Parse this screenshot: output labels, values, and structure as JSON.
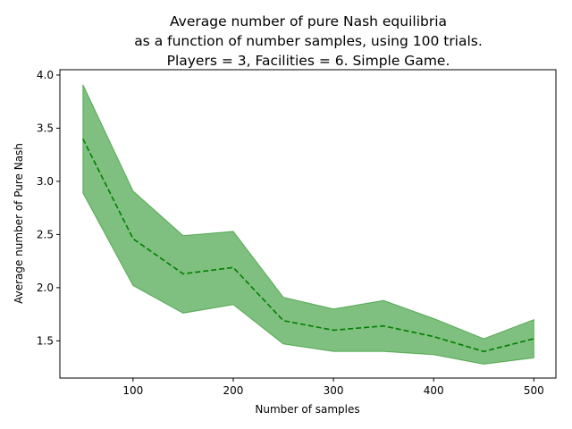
{
  "chart_data": {
    "type": "line",
    "title_lines": [
      "Average number of pure Nash equilibria",
      "as a function of number samples, using 100 trials.",
      "Players = 3, Facilities = 6. Simple Game."
    ],
    "xlabel": "Number of samples",
    "ylabel": "Average number of Pure Nash",
    "xlim": [
      27,
      522
    ],
    "ylim": [
      1.15,
      4.05
    ],
    "xticks": [
      100,
      200,
      300,
      400,
      500
    ],
    "xtick_labels": [
      "100",
      "200",
      "300",
      "400",
      "500"
    ],
    "yticks": [
      1.5,
      2.0,
      2.5,
      3.0,
      3.5,
      4.0
    ],
    "ytick_labels": [
      "1.5",
      "2.0",
      "2.5",
      "3.0",
      "3.5",
      "4.0"
    ],
    "grid": false,
    "x": [
      50,
      100,
      150,
      200,
      250,
      300,
      350,
      400,
      450,
      500
    ],
    "series": [
      {
        "mean": [
          3.4,
          2.46,
          2.13,
          2.19,
          1.69,
          1.6,
          1.64,
          1.54,
          1.4,
          1.52
        ],
        "upper": [
          3.91,
          2.91,
          2.49,
          2.53,
          1.91,
          1.8,
          1.88,
          1.71,
          1.52,
          1.7
        ],
        "lower": [
          2.89,
          2.02,
          1.76,
          1.84,
          1.47,
          1.4,
          1.4,
          1.37,
          1.28,
          1.34
        ],
        "line_color": "#008000",
        "band_color": "#008000"
      }
    ]
  }
}
